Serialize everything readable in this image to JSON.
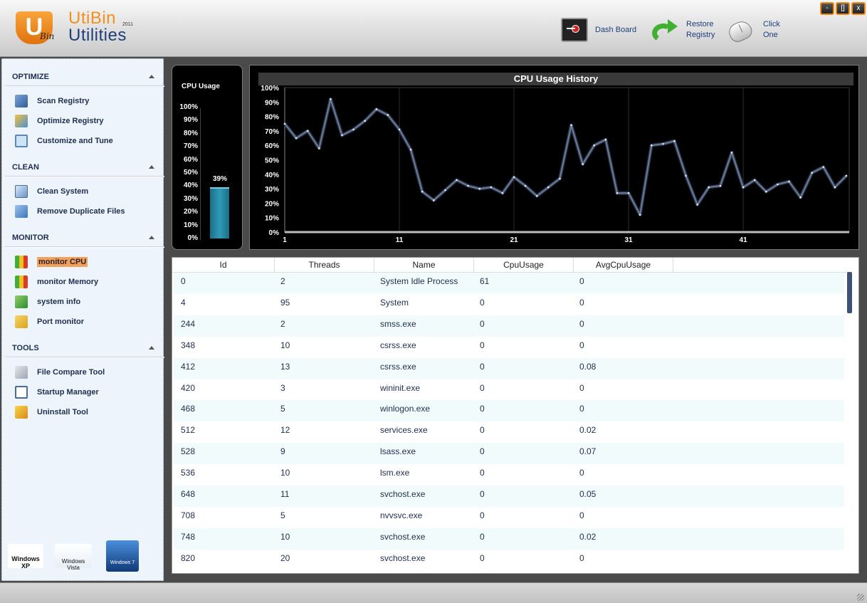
{
  "app": {
    "logo_letter": "U",
    "logo_sub": "Bin",
    "name_line1": "UtiBin",
    "name_line2": "Utilities",
    "year": "2011"
  },
  "window_controls": {
    "minimize": "-",
    "maximize": "[]",
    "close": "x"
  },
  "toolbar": {
    "dashboard_label": "Dash Board",
    "restore_label_1": "Restore",
    "restore_label_2": "Registry",
    "clickone_label_1": "Click",
    "clickone_label_2": "One"
  },
  "sidebar": {
    "optimize": {
      "title": "OPTIMIZE",
      "items": [
        {
          "label": "Scan Registry",
          "icon": "magnifier-registry-icon"
        },
        {
          "label": "Optimize Registry",
          "icon": "optimize-icon"
        },
        {
          "label": "Customize and Tune",
          "icon": "customize-icon"
        }
      ]
    },
    "clean": {
      "title": "CLEAN",
      "items": [
        {
          "label": "Clean System",
          "icon": "clean-system-icon"
        },
        {
          "label": "Remove Duplicate Files",
          "icon": "duplicate-files-icon"
        }
      ]
    },
    "monitor": {
      "title": "MONITOR",
      "items": [
        {
          "label": "monitor CPU",
          "icon": "cpu-chart-icon",
          "active": true
        },
        {
          "label": "monitor Memory",
          "icon": "memory-chart-icon"
        },
        {
          "label": "system info",
          "icon": "system-info-icon"
        },
        {
          "label": "Port monitor",
          "icon": "port-monitor-icon"
        }
      ]
    },
    "tools": {
      "title": "TOOLS",
      "items": [
        {
          "label": "File Compare Tool",
          "icon": "file-compare-icon"
        },
        {
          "label": "Startup Manager",
          "icon": "startup-manager-icon"
        },
        {
          "label": "Uninstall Tool",
          "icon": "uninstall-icon"
        }
      ]
    },
    "os_logos": [
      "Windows XP",
      "Windows Vista",
      "Windows 7"
    ]
  },
  "cpu_usage": {
    "title": "CPU Usage",
    "value_label": "39%",
    "value": 39,
    "ticks": [
      "100%",
      "90%",
      "80%",
      "70%",
      "60%",
      "50%",
      "40%",
      "30%",
      "20%",
      "10%",
      "0%"
    ]
  },
  "chart_data": {
    "type": "line",
    "title": "CPU Usage History",
    "xlabel": "",
    "ylabel": "",
    "ylim": [
      0,
      100
    ],
    "y_ticks": [
      "100%",
      "90%",
      "80%",
      "70%",
      "60%",
      "50%",
      "40%",
      "30%",
      "20%",
      "10%",
      "0%"
    ],
    "x_ticks": [
      1,
      11,
      21,
      31,
      41
    ],
    "grid": true,
    "series": [
      {
        "values": [
          75,
          65,
          70,
          58,
          92,
          67,
          71,
          77,
          85,
          81,
          71,
          57,
          28,
          22,
          29,
          36,
          32,
          30,
          31,
          27,
          38,
          32,
          25,
          31,
          37,
          74,
          47,
          60,
          64,
          27,
          27,
          12,
          60,
          61,
          63,
          39,
          19,
          31,
          32,
          55,
          31,
          36,
          28,
          33,
          35,
          24,
          41,
          45,
          31,
          39
        ]
      }
    ]
  },
  "table": {
    "columns": [
      "Id",
      "Threads",
      "Name",
      "CpuUsage",
      "AvgCpuUsage"
    ],
    "rows": [
      [
        "0",
        "2",
        "System Idle Process",
        "61",
        "0"
      ],
      [
        "4",
        "95",
        "System",
        "0",
        "0"
      ],
      [
        "244",
        "2",
        "smss.exe",
        "0",
        "0"
      ],
      [
        "348",
        "10",
        "csrss.exe",
        "0",
        "0"
      ],
      [
        "412",
        "13",
        "csrss.exe",
        "0",
        "0.08"
      ],
      [
        "420",
        "3",
        "wininit.exe",
        "0",
        "0"
      ],
      [
        "468",
        "5",
        "winlogon.exe",
        "0",
        "0"
      ],
      [
        "512",
        "12",
        "services.exe",
        "0",
        "0.02"
      ],
      [
        "528",
        "9",
        "lsass.exe",
        "0",
        "0.07"
      ],
      [
        "536",
        "10",
        "lsm.exe",
        "0",
        "0"
      ],
      [
        "648",
        "11",
        "svchost.exe",
        "0",
        "0.05"
      ],
      [
        "708",
        "5",
        "nvvsvc.exe",
        "0",
        "0"
      ],
      [
        "748",
        "10",
        "svchost.exe",
        "0",
        "0.02"
      ],
      [
        "820",
        "20",
        "svchost.exe",
        "0",
        "0"
      ]
    ]
  },
  "colors": {
    "accent_orange": "#ee8a14",
    "navy_text": "#1d2e4e",
    "chart_line": "#6c7c96",
    "cpu_bar": "#2f9bb7"
  }
}
